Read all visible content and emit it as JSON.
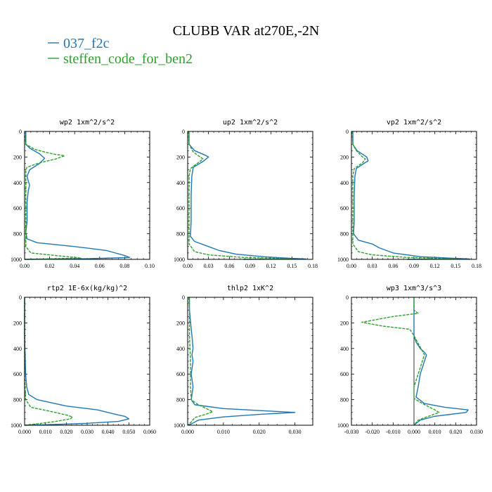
{
  "figure": {
    "title": "CLUBB VAR at270E,-2N",
    "legend": [
      {
        "name": "037_f2c",
        "color": "#1f77b4"
      },
      {
        "name": "steffen_code_for_ben2",
        "color": "#2ca02c"
      }
    ]
  },
  "chart_data": [
    {
      "type": "line",
      "title": "wp2  1xm^2/s^2",
      "xlim": [
        0,
        0.1
      ],
      "ylim": [
        0,
        1000
      ],
      "y_inverted": true,
      "xticks": [
        "0.00",
        "0.02",
        "0.04",
        "0.06",
        "0.08",
        "0.10"
      ],
      "yticks": [
        "0",
        "200",
        "400",
        "600",
        "800",
        "1000"
      ],
      "series": [
        {
          "name": "037_f2c",
          "points": [
            [
              0.001,
              0
            ],
            [
              0.001,
              100
            ],
            [
              0.004,
              130
            ],
            [
              0.012,
              175
            ],
            [
              0.016,
              210
            ],
            [
              0.012,
              250
            ],
            [
              0.004,
              300
            ],
            [
              0.002,
              350
            ],
            [
              0.003,
              390
            ],
            [
              0.004,
              420
            ],
            [
              0.003,
              460
            ],
            [
              0.002,
              550
            ],
            [
              0.002,
              700
            ],
            [
              0.001,
              790
            ],
            [
              0.002,
              840
            ],
            [
              0.01,
              870
            ],
            [
              0.04,
              900
            ],
            [
              0.065,
              930
            ],
            [
              0.08,
              970
            ],
            [
              0.084,
              985
            ],
            [
              0.05,
              995
            ],
            [
              0.0,
              1000
            ]
          ]
        },
        {
          "name": "steffen_code_for_ben2",
          "points": [
            [
              0.0,
              0
            ],
            [
              0.001,
              100
            ],
            [
              0.008,
              140
            ],
            [
              0.022,
              175
            ],
            [
              0.032,
              190
            ],
            [
              0.025,
              215
            ],
            [
              0.012,
              245
            ],
            [
              0.002,
              280
            ],
            [
              0.001,
              300
            ],
            [
              0.001,
              400
            ],
            [
              0.001,
              600
            ],
            [
              0.001,
              800
            ],
            [
              0.001,
              900
            ],
            [
              0.005,
              950
            ],
            [
              0.03,
              975
            ],
            [
              0.045,
              990
            ],
            [
              0.02,
              996
            ],
            [
              0.0,
              1000
            ]
          ]
        }
      ]
    },
    {
      "type": "line",
      "title": "up2  1xm^2/s^2",
      "xlim": [
        0,
        0.18
      ],
      "ylim": [
        0,
        1000
      ],
      "y_inverted": true,
      "xticks": [
        "0.00",
        "0.03",
        "0.06",
        "0.09",
        "0.12",
        "0.15",
        "0.18"
      ],
      "yticks": [
        "0",
        "200",
        "400",
        "600",
        "800",
        "1000"
      ],
      "series": [
        {
          "name": "037_f2c",
          "points": [
            [
              0.002,
              0
            ],
            [
              0.002,
              100
            ],
            [
              0.01,
              150
            ],
            [
              0.025,
              185
            ],
            [
              0.03,
              200
            ],
            [
              0.022,
              235
            ],
            [
              0.008,
              280
            ],
            [
              0.006,
              350
            ],
            [
              0.005,
              500
            ],
            [
              0.005,
              700
            ],
            [
              0.004,
              820
            ],
            [
              0.01,
              860
            ],
            [
              0.03,
              900
            ],
            [
              0.045,
              930
            ],
            [
              0.07,
              960
            ],
            [
              0.11,
              980
            ],
            [
              0.15,
              992
            ],
            [
              0.17,
              997
            ],
            [
              0.08,
              1000
            ]
          ]
        },
        {
          "name": "steffen_code_for_ben2",
          "points": [
            [
              0.001,
              0
            ],
            [
              0.002,
              100
            ],
            [
              0.008,
              160
            ],
            [
              0.018,
              200
            ],
            [
              0.022,
              215
            ],
            [
              0.015,
              245
            ],
            [
              0.004,
              290
            ],
            [
              0.002,
              350
            ],
            [
              0.002,
              600
            ],
            [
              0.002,
              880
            ],
            [
              0.01,
              940
            ],
            [
              0.03,
              965
            ],
            [
              0.08,
              985
            ],
            [
              0.15,
              995
            ],
            [
              0.1,
              1000
            ]
          ]
        }
      ]
    },
    {
      "type": "line",
      "title": "vp2  1xm^2/s^2",
      "xlim": [
        0,
        0.18
      ],
      "ylim": [
        0,
        1000
      ],
      "y_inverted": true,
      "xticks": [
        "0.00",
        "0.03",
        "0.06",
        "0.09",
        "0.12",
        "0.15",
        "0.18"
      ],
      "yticks": [
        "0",
        "200",
        "400",
        "600",
        "800",
        "1000"
      ],
      "series": [
        {
          "name": "037_f2c",
          "points": [
            [
              0.002,
              0
            ],
            [
              0.002,
              100
            ],
            [
              0.008,
              150
            ],
            [
              0.018,
              185
            ],
            [
              0.022,
              200
            ],
            [
              0.024,
              230
            ],
            [
              0.018,
              250
            ],
            [
              0.007,
              290
            ],
            [
              0.005,
              350
            ],
            [
              0.004,
              500
            ],
            [
              0.004,
              700
            ],
            [
              0.003,
              800
            ],
            [
              0.01,
              850
            ],
            [
              0.03,
              880
            ],
            [
              0.04,
              910
            ],
            [
              0.06,
              950
            ],
            [
              0.1,
              980
            ],
            [
              0.15,
              992
            ],
            [
              0.17,
              997
            ],
            [
              0.08,
              1000
            ]
          ]
        },
        {
          "name": "steffen_code_for_ben2",
          "points": [
            [
              0.001,
              0
            ],
            [
              0.002,
              100
            ],
            [
              0.007,
              150
            ],
            [
              0.015,
              195
            ],
            [
              0.02,
              215
            ],
            [
              0.016,
              245
            ],
            [
              0.004,
              290
            ],
            [
              0.002,
              350
            ],
            [
              0.002,
              600
            ],
            [
              0.002,
              880
            ],
            [
              0.01,
              940
            ],
            [
              0.03,
              965
            ],
            [
              0.08,
              985
            ],
            [
              0.15,
              995
            ],
            [
              0.1,
              1000
            ]
          ]
        }
      ]
    },
    {
      "type": "line",
      "title": "rtp2  1E-6x(kg/kg)^2",
      "xlim": [
        0,
        0.06
      ],
      "ylim": [
        0,
        1000
      ],
      "y_inverted": true,
      "xticks": [
        "0.000",
        "0.010",
        "0.020",
        "0.030",
        "0.040",
        "0.050",
        "0.060"
      ],
      "yticks": [
        "0",
        "200",
        "400",
        "600",
        "800",
        "1000"
      ],
      "series": [
        {
          "name": "037_f2c",
          "points": [
            [
              0.0,
              0
            ],
            [
              0.0,
              300
            ],
            [
              0.0005,
              600
            ],
            [
              0.001,
              700
            ],
            [
              0.002,
              760
            ],
            [
              0.006,
              800
            ],
            [
              0.02,
              850
            ],
            [
              0.035,
              880
            ],
            [
              0.045,
              920
            ],
            [
              0.048,
              930
            ],
            [
              0.05,
              950
            ],
            [
              0.045,
              970
            ],
            [
              0.03,
              985
            ],
            [
              0.01,
              996
            ],
            [
              0.0,
              1000
            ]
          ]
        },
        {
          "name": "steffen_code_for_ben2",
          "points": [
            [
              0.0,
              0
            ],
            [
              0.0,
              600
            ],
            [
              0.0005,
              800
            ],
            [
              0.003,
              860
            ],
            [
              0.012,
              890
            ],
            [
              0.02,
              920
            ],
            [
              0.023,
              935
            ],
            [
              0.022,
              950
            ],
            [
              0.015,
              970
            ],
            [
              0.008,
              985
            ],
            [
              0.003,
              995
            ],
            [
              0.0,
              1000
            ]
          ]
        }
      ]
    },
    {
      "type": "line",
      "title": "thlp2  1xK^2",
      "xlim": [
        0,
        0.035
      ],
      "ylim": [
        0,
        1000
      ],
      "y_inverted": true,
      "xticks": [
        "0.000",
        "0.010",
        "0.020",
        "0.030"
      ],
      "yticks": [
        "0",
        "200",
        "400",
        "600",
        "800",
        "1000"
      ],
      "series": [
        {
          "name": "037_f2c",
          "points": [
            [
              0.0005,
              0
            ],
            [
              0.0005,
              100
            ],
            [
              0.001,
              250
            ],
            [
              0.0012,
              300
            ],
            [
              0.0015,
              400
            ],
            [
              0.0012,
              450
            ],
            [
              0.0015,
              500
            ],
            [
              0.001,
              600
            ],
            [
              0.0015,
              700
            ],
            [
              0.001,
              800
            ],
            [
              0.002,
              840
            ],
            [
              0.01,
              870
            ],
            [
              0.02,
              885
            ],
            [
              0.03,
              900
            ],
            [
              0.02,
              915
            ],
            [
              0.01,
              935
            ],
            [
              0.003,
              960
            ],
            [
              0.001,
              990
            ],
            [
              0.0,
              1000
            ]
          ]
        },
        {
          "name": "steffen_code_for_ben2",
          "points": [
            [
              0.0003,
              0
            ],
            [
              0.0005,
              100
            ],
            [
              0.0005,
              300
            ],
            [
              0.0008,
              500
            ],
            [
              0.0008,
              700
            ],
            [
              0.001,
              800
            ],
            [
              0.003,
              840
            ],
            [
              0.006,
              880
            ],
            [
              0.007,
              895
            ],
            [
              0.005,
              915
            ],
            [
              0.002,
              940
            ],
            [
              0.001,
              975
            ],
            [
              0.0,
              1000
            ]
          ]
        }
      ]
    },
    {
      "type": "line",
      "title": "wp3  1xm^3/s^3",
      "xlim": [
        -0.03,
        0.03
      ],
      "ylim": [
        0,
        1000
      ],
      "y_inverted": true,
      "xticks": [
        "-0.030",
        "-0.020",
        "-0.010",
        "0.000",
        "0.010",
        "0.020",
        "0.030"
      ],
      "yticks": [
        "0",
        "200",
        "400",
        "600",
        "800",
        "1000"
      ],
      "series": [
        {
          "name": "037_f2c",
          "points": [
            [
              0.0,
              0
            ],
            [
              0.0,
              300
            ],
            [
              0.001,
              350
            ],
            [
              0.003,
              400
            ],
            [
              0.005,
              430
            ],
            [
              0.006,
              450
            ],
            [
              0.005,
              500
            ],
            [
              0.003,
              600
            ],
            [
              0.002,
              700
            ],
            [
              0.001,
              780
            ],
            [
              0.005,
              830
            ],
            [
              0.015,
              860
            ],
            [
              0.026,
              880
            ],
            [
              0.025,
              900
            ],
            [
              0.01,
              930
            ],
            [
              0.003,
              960
            ],
            [
              0.0,
              1000
            ]
          ]
        },
        {
          "name": "steffen_code_for_ben2",
          "points": [
            [
              0.0,
              0
            ],
            [
              0.0,
              100
            ],
            [
              0.002,
              125
            ],
            [
              -0.01,
              150
            ],
            [
              -0.025,
              195
            ],
            [
              -0.015,
              225
            ],
            [
              -0.002,
              250
            ],
            [
              0.0,
              300
            ],
            [
              0.002,
              360
            ],
            [
              0.004,
              420
            ],
            [
              0.005,
              450
            ],
            [
              0.004,
              500
            ],
            [
              0.002,
              600
            ],
            [
              0.0,
              700
            ],
            [
              0.0,
              790
            ],
            [
              0.004,
              830
            ],
            [
              0.01,
              880
            ],
            [
              0.012,
              900
            ],
            [
              0.007,
              930
            ],
            [
              0.002,
              960
            ],
            [
              0.0,
              1000
            ]
          ]
        }
      ]
    }
  ]
}
